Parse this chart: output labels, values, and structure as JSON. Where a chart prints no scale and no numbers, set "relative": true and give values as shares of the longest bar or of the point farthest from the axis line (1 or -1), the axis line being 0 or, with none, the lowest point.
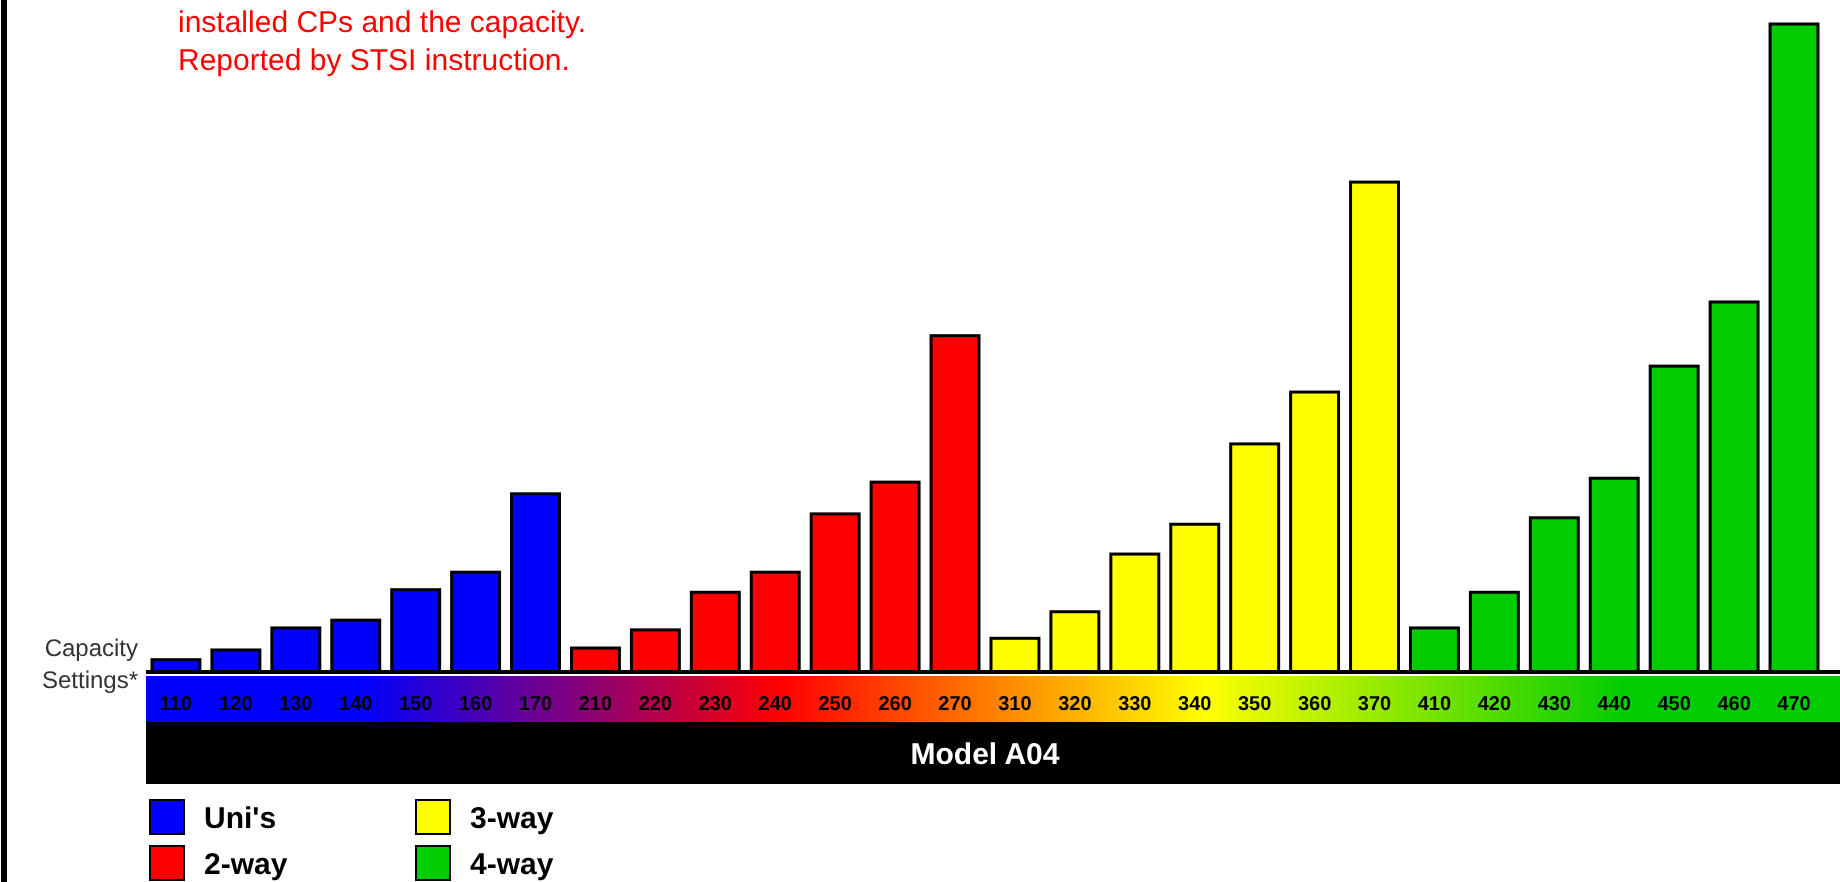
{
  "chart_data": {
    "type": "bar",
    "relative": true,
    "ylabel": "Capacity Settings*",
    "xlabel": "Model A04",
    "annotations": [
      "installed CPs and the capacity.",
      "Reported by STSI instruction."
    ],
    "categories": [
      "110",
      "120",
      "130",
      "140",
      "150",
      "160",
      "170",
      "210",
      "220",
      "230",
      "240",
      "250",
      "260",
      "270",
      "310",
      "320",
      "330",
      "340",
      "350",
      "360",
      "370",
      "410",
      "420",
      "430",
      "440",
      "450",
      "460",
      "470"
    ],
    "series": [
      {
        "name": "Uni's",
        "color": "#0000ff",
        "values": [
          0.019,
          0.034,
          0.068,
          0.08,
          0.127,
          0.154,
          0.275,
          null,
          null,
          null,
          null,
          null,
          null,
          null,
          null,
          null,
          null,
          null,
          null,
          null,
          null,
          null,
          null,
          null,
          null,
          null,
          null,
          null
        ]
      },
      {
        "name": "2-way",
        "color": "#ff0000",
        "values": [
          null,
          null,
          null,
          null,
          null,
          null,
          null,
          0.037,
          0.065,
          0.123,
          0.154,
          0.244,
          0.293,
          0.519,
          null,
          null,
          null,
          null,
          null,
          null,
          null,
          null,
          null,
          null,
          null,
          null,
          null,
          null
        ]
      },
      {
        "name": "3-way",
        "color": "#ffff00",
        "values": [
          null,
          null,
          null,
          null,
          null,
          null,
          null,
          null,
          null,
          null,
          null,
          null,
          null,
          null,
          0.052,
          0.093,
          0.182,
          0.228,
          0.352,
          0.432,
          0.756,
          null,
          null,
          null,
          null,
          null,
          null,
          null
        ]
      },
      {
        "name": "4-way",
        "color": "#00cc00",
        "values": [
          null,
          null,
          null,
          null,
          null,
          null,
          null,
          null,
          null,
          null,
          null,
          null,
          null,
          null,
          null,
          null,
          null,
          null,
          null,
          null,
          null,
          0.068,
          0.123,
          0.238,
          0.299,
          0.472,
          0.571,
          1
        ]
      }
    ],
    "legend": "bottom left"
  }
}
